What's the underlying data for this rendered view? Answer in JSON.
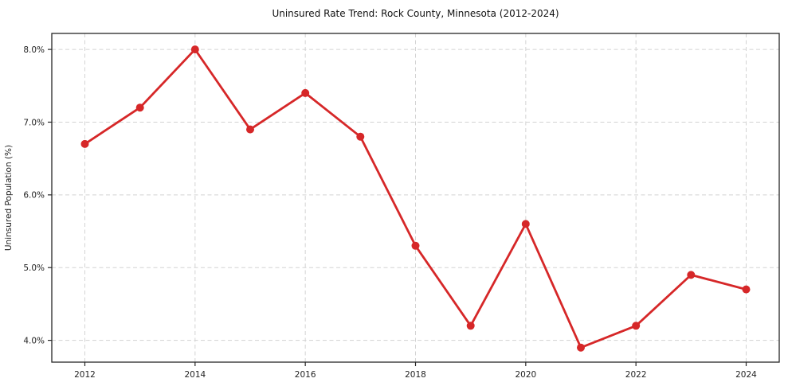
{
  "figure": {
    "title": "Uninsured Rate Trend: Rock County, Minnesota (2012-2024)"
  },
  "chart_data": {
    "type": "line",
    "title": "Uninsured Rate Trend: Rock County, Minnesota (2012-2024)",
    "xlabel": "",
    "ylabel": "Uninsured Population (%)",
    "x": [
      2012,
      2013,
      2014,
      2015,
      2016,
      2017,
      2018,
      2019,
      2020,
      2021,
      2022,
      2023,
      2024
    ],
    "values": [
      6.7,
      7.2,
      8.0,
      6.9,
      7.4,
      6.8,
      5.3,
      4.2,
      5.6,
      3.9,
      4.2,
      4.9,
      4.7
    ],
    "xticks": [
      2012,
      2014,
      2016,
      2018,
      2020,
      2022,
      2024
    ],
    "xtick_labels": [
      "2012",
      "2014",
      "2016",
      "2018",
      "2020",
      "2022",
      "2024"
    ],
    "yticks": [
      4.0,
      5.0,
      6.0,
      7.0,
      8.0
    ],
    "ytick_labels": [
      "4.0%",
      "5.0%",
      "6.0%",
      "7.0%",
      "8.0%"
    ],
    "xlim": [
      2011.4,
      2024.6
    ],
    "ylim": [
      3.7,
      8.22
    ],
    "grid": true,
    "grid_style": "dashed",
    "legend": false,
    "line_color": "#d62728",
    "marker": "circle",
    "marker_color": "#d62728",
    "grid_color": "#d3d3d3",
    "spine_color": "#262626",
    "background_color": "#ffffff"
  }
}
